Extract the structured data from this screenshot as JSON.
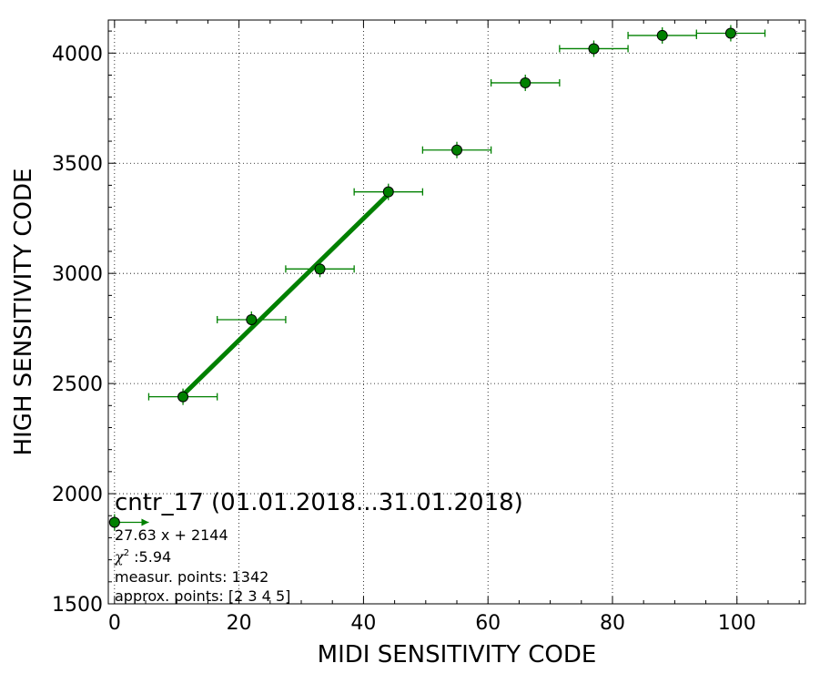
{
  "chart_data": {
    "type": "scatter",
    "title": "",
    "xlabel": "MIDI SENSITIVITY CODE",
    "ylabel": "HIGH SENSITIVITY CODE",
    "xlim": [
      -1,
      111
    ],
    "ylim": [
      1500,
      4150
    ],
    "x_ticks": [
      0,
      20,
      40,
      60,
      80,
      100
    ],
    "y_ticks": [
      1500,
      2000,
      2500,
      3000,
      3500,
      4000
    ],
    "x_tick_labels": [
      "0",
      "20",
      "40",
      "60",
      "80",
      "100"
    ],
    "y_tick_labels": [
      "1500",
      "2000",
      "2500",
      "3000",
      "3500",
      "4000"
    ],
    "grid": true,
    "colors": {
      "points": "#008000",
      "fit_line": "#008000",
      "marker_edge": "#000000"
    },
    "points": [
      {
        "x": 0,
        "y": 1870,
        "xerr_plus": 5.5,
        "xerr_minus": 0
      },
      {
        "x": 11,
        "y": 2440,
        "xerr": 5.5
      },
      {
        "x": 22,
        "y": 2790,
        "xerr": 5.5
      },
      {
        "x": 33,
        "y": 3020,
        "xerr": 5.5
      },
      {
        "x": 44,
        "y": 3370,
        "xerr": 5.5
      },
      {
        "x": 55,
        "y": 3560,
        "xerr": 5.5
      },
      {
        "x": 66,
        "y": 3865,
        "xerr": 5.5
      },
      {
        "x": 77,
        "y": 4020,
        "xerr": 5.5
      },
      {
        "x": 88,
        "y": 4080,
        "xerr": 5.5
      },
      {
        "x": 99,
        "y": 4090,
        "xerr": 5.5
      }
    ],
    "fit": {
      "slope": 27.63,
      "intercept": 2144,
      "x_range": [
        11,
        44
      ]
    },
    "annotations": {
      "title": "cntr_17 (01.01.2018...31.01.2018)",
      "equation": "27.63 x + 2144",
      "chi_symbol": "χ",
      "chi_sup": "2",
      "chi_value": " :5.94",
      "measur_points": "measur. points: 1342",
      "approx_points": "approx. points: [2 3 4 5]"
    }
  }
}
